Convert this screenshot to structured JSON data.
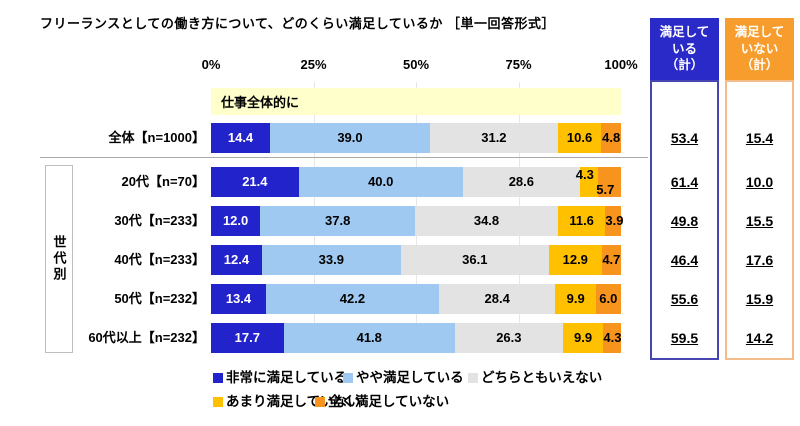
{
  "title": "フリーランスとしての働き方について、どのくらい満足しているか ［単一回答形式］",
  "band_label": "仕事全体的に",
  "group_label": "世代別",
  "summary": {
    "satisfied_header": "満足して\nいる\n（計）",
    "dissatisfied_header": "満足して\nいない\n（計）"
  },
  "chart_data": {
    "type": "bar",
    "variant": "stacked-horizontal",
    "title": "フリーランスとしての働き方について、どのくらい満足しているか ［単一回答形式］",
    "x_ticks": [
      "0%",
      "25%",
      "50%",
      "75%",
      "100%"
    ],
    "xlim": [
      0,
      100
    ],
    "grid": "vertical gridlines at 25/50/75",
    "legend_position": "bottom",
    "band_label": "仕事全体的に",
    "series": [
      {
        "name": "非常に満足している",
        "color": "#2323cb"
      },
      {
        "name": "やや満足している",
        "color": "#9fc9f1"
      },
      {
        "name": "どちらともいえない",
        "color": "#e3e3e3"
      },
      {
        "name": "あまり満足していない",
        "color": "#ffc000"
      },
      {
        "name": "全く満足していない",
        "color": "#f7941e"
      }
    ],
    "rows": [
      {
        "label": "全体【n=1000】",
        "values": [
          14.4,
          39.0,
          31.2,
          10.6,
          4.8
        ],
        "value_labels": [
          "14.4",
          "39.0",
          "31.2",
          "10.6",
          "4.8"
        ],
        "satisfied_total": "53.4",
        "dissatisfied_total": "15.4",
        "group": null
      },
      {
        "label": "20代【n=70】",
        "values": [
          21.4,
          40.0,
          28.6,
          4.3,
          5.7
        ],
        "value_labels": [
          "21.4",
          "40.0",
          "28.6",
          "4.3",
          "5.7"
        ],
        "label_positions": [
          null,
          null,
          null,
          "up",
          "down"
        ],
        "satisfied_total": "61.4",
        "dissatisfied_total": "10.0",
        "group": "世代別"
      },
      {
        "label": "30代【n=233】",
        "values": [
          12.0,
          37.8,
          34.8,
          11.6,
          3.9
        ],
        "value_labels": [
          "12.0",
          "37.8",
          "34.8",
          "11.6",
          "3.9"
        ],
        "satisfied_total": "49.8",
        "dissatisfied_total": "15.5",
        "group": "世代別"
      },
      {
        "label": "40代【n=233】",
        "values": [
          12.4,
          33.9,
          36.1,
          12.9,
          4.7
        ],
        "value_labels": [
          "12.4",
          "33.9",
          "36.1",
          "12.9",
          "4.7"
        ],
        "satisfied_total": "46.4",
        "dissatisfied_total": "17.6",
        "group": "世代別"
      },
      {
        "label": "50代【n=232】",
        "values": [
          13.4,
          42.2,
          28.4,
          9.9,
          6.0
        ],
        "value_labels": [
          "13.4",
          "42.2",
          "28.4",
          "9.9",
          "6.0"
        ],
        "satisfied_total": "55.6",
        "dissatisfied_total": "15.9",
        "group": "世代別"
      },
      {
        "label": "60代以上【n=232】",
        "values": [
          17.7,
          41.8,
          26.3,
          9.9,
          4.3
        ],
        "value_labels": [
          "17.7",
          "41.8",
          "26.3",
          "9.9",
          "4.3"
        ],
        "satisfied_total": "59.5",
        "dissatisfied_total": "14.2",
        "group": "世代別"
      }
    ]
  }
}
